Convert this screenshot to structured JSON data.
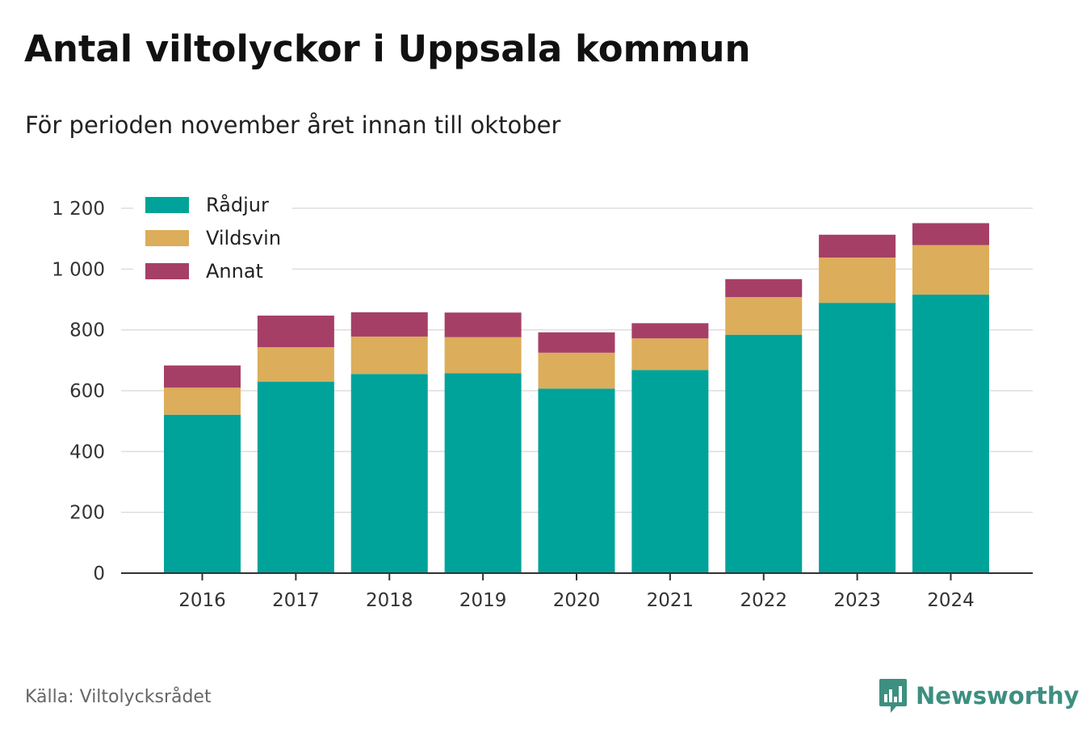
{
  "header": {
    "title": "Antal viltolyckor i Uppsala kommun",
    "subtitle": "För perioden november året innan till oktober"
  },
  "footer": {
    "source": "Källa: Viltolycksrådet",
    "brand": "Newsworthy",
    "brand_icon": "bar-chart-speech-bubble-icon"
  },
  "colors": {
    "radjur": "#00a39a",
    "vildsvin": "#dcad5a",
    "annat": "#a63f66",
    "gridline": "#dddddd",
    "axis": "#333333",
    "brand": "#3d8f80"
  },
  "chart_data": {
    "type": "bar",
    "stacked": true,
    "title": "Antal viltolyckor i Uppsala kommun",
    "subtitle": "För perioden november året innan till oktober",
    "xlabel": "",
    "ylabel": "",
    "ylim": [
      0,
      1200
    ],
    "yticks": [
      0,
      200,
      400,
      600,
      800,
      1000,
      1200
    ],
    "ytick_labels": [
      "0",
      "200",
      "400",
      "600",
      "800",
      "1 000",
      "1 200"
    ],
    "grid": true,
    "legend_position": "top-left",
    "categories": [
      "2016",
      "2017",
      "2018",
      "2019",
      "2020",
      "2021",
      "2022",
      "2023",
      "2024"
    ],
    "series": [
      {
        "name": "Rådjur",
        "color": "#00a39a",
        "values": [
          521,
          630,
          655,
          657,
          607,
          668,
          784,
          889,
          916
        ]
      },
      {
        "name": "Vildsvin",
        "color": "#dcad5a",
        "values": [
          89,
          113,
          123,
          119,
          118,
          104,
          124,
          149,
          163
        ]
      },
      {
        "name": "Annat",
        "color": "#a63f66",
        "values": [
          73,
          104,
          80,
          81,
          67,
          50,
          59,
          75,
          72
        ]
      }
    ]
  }
}
